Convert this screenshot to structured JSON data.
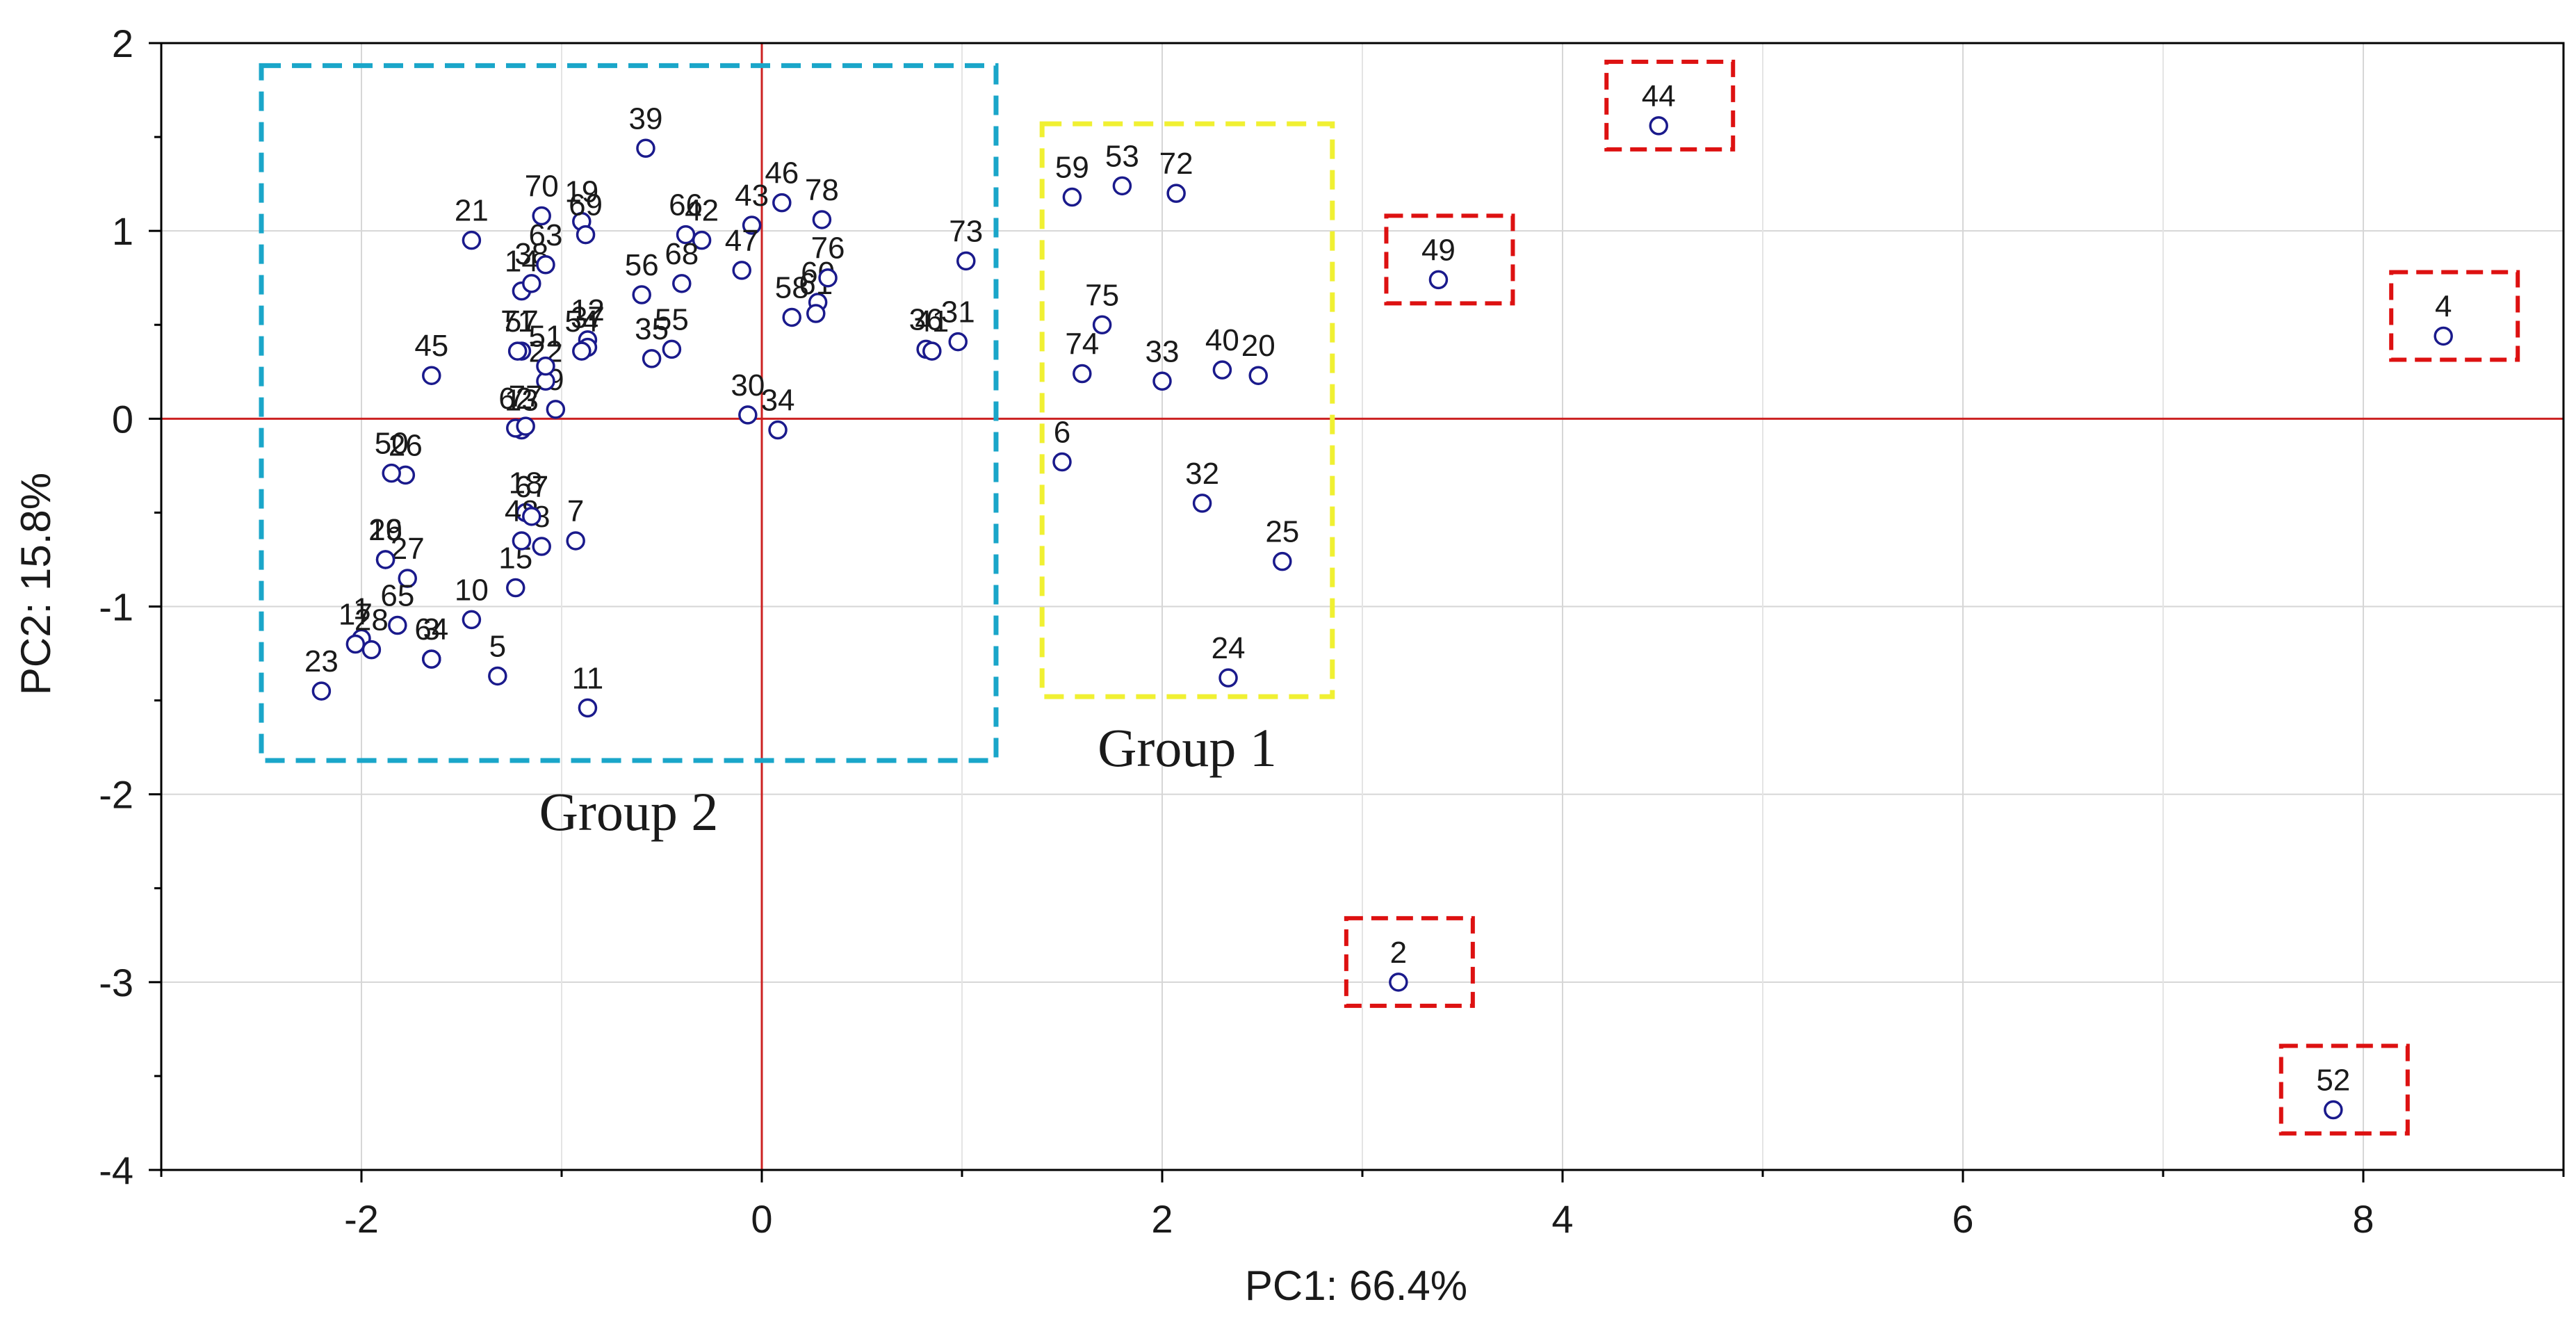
{
  "chart_data": {
    "type": "scatter",
    "title": "",
    "xlabel": "PC1: 66.4%",
    "ylabel": "PC2: 15.8%",
    "xlim": [
      -3,
      9
    ],
    "ylim": [
      -4,
      2
    ],
    "xticks": [
      -2,
      0,
      2,
      4,
      6,
      8
    ],
    "yticks": [
      -4,
      -3,
      -2,
      -1,
      0,
      1,
      2
    ],
    "grid": true,
    "reference_lines": {
      "x": 0,
      "y": 0,
      "color": "#cc2222"
    },
    "marker": {
      "shape": "open-circle",
      "color": "#1a1a8c"
    },
    "points": [
      {
        "label": "1",
        "x": -2.0,
        "y": -1.17
      },
      {
        "label": "2",
        "x": 3.18,
        "y": -3.0
      },
      {
        "label": "3",
        "x": -1.65,
        "y": -1.28
      },
      {
        "label": "4",
        "x": 8.4,
        "y": 0.44
      },
      {
        "label": "5",
        "x": -1.32,
        "y": -1.37
      },
      {
        "label": "6",
        "x": 1.5,
        "y": -0.23
      },
      {
        "label": "7",
        "x": -0.93,
        "y": -0.65
      },
      {
        "label": "8",
        "x": -1.1,
        "y": -0.68
      },
      {
        "label": "9",
        "x": -1.03,
        "y": 0.05
      },
      {
        "label": "10",
        "x": -1.45,
        "y": -1.07
      },
      {
        "label": "11",
        "x": -0.87,
        "y": -1.54
      },
      {
        "label": "12",
        "x": -0.87,
        "y": 0.42
      },
      {
        "label": "13",
        "x": -1.2,
        "y": -0.06
      },
      {
        "label": "14",
        "x": -1.2,
        "y": 0.68
      },
      {
        "label": "15",
        "x": -1.23,
        "y": -0.9
      },
      {
        "label": "16",
        "x": -1.88,
        "y": -0.75
      },
      {
        "label": "17",
        "x": -2.03,
        "y": -1.2
      },
      {
        "label": "18",
        "x": -1.18,
        "y": -0.5
      },
      {
        "label": "19",
        "x": -0.9,
        "y": 1.05
      },
      {
        "label": "20",
        "x": 2.48,
        "y": 0.23
      },
      {
        "label": "21",
        "x": -1.45,
        "y": 0.95
      },
      {
        "label": "22",
        "x": -1.08,
        "y": 0.2
      },
      {
        "label": "23",
        "x": -2.2,
        "y": -1.45
      },
      {
        "label": "24",
        "x": 2.33,
        "y": -1.38
      },
      {
        "label": "25",
        "x": 2.6,
        "y": -0.76
      },
      {
        "label": "26",
        "x": -1.78,
        "y": -0.3
      },
      {
        "label": "27",
        "x": -1.77,
        "y": -0.85
      },
      {
        "label": "28",
        "x": -1.95,
        "y": -1.23
      },
      {
        "label": "29",
        "x": -1.88,
        "y": -0.75
      },
      {
        "label": "30",
        "x": -0.07,
        "y": 0.02
      },
      {
        "label": "31",
        "x": 0.98,
        "y": 0.41
      },
      {
        "label": "32",
        "x": 2.2,
        "y": -0.45
      },
      {
        "label": "33",
        "x": 2.0,
        "y": 0.2
      },
      {
        "label": "34",
        "x": 0.08,
        "y": -0.06
      },
      {
        "label": "35",
        "x": -0.55,
        "y": 0.32
      },
      {
        "label": "36",
        "x": 0.82,
        "y": 0.37
      },
      {
        "label": "37",
        "x": -0.87,
        "y": 0.38
      },
      {
        "label": "38",
        "x": -1.15,
        "y": 0.72
      },
      {
        "label": "39",
        "x": -0.58,
        "y": 1.44
      },
      {
        "label": "40",
        "x": 2.3,
        "y": 0.26
      },
      {
        "label": "41",
        "x": 0.85,
        "y": 0.36
      },
      {
        "label": "42",
        "x": -0.3,
        "y": 0.95
      },
      {
        "label": "43",
        "x": -0.05,
        "y": 1.03
      },
      {
        "label": "44",
        "x": 4.48,
        "y": 1.56
      },
      {
        "label": "45",
        "x": -1.65,
        "y": 0.23
      },
      {
        "label": "46",
        "x": 0.1,
        "y": 1.15
      },
      {
        "label": "47",
        "x": -0.1,
        "y": 0.79
      },
      {
        "label": "48",
        "x": -1.2,
        "y": -0.65
      },
      {
        "label": "49",
        "x": 3.38,
        "y": 0.74
      },
      {
        "label": "50",
        "x": -1.85,
        "y": -0.29
      },
      {
        "label": "51",
        "x": -1.08,
        "y": 0.28
      },
      {
        "label": "52",
        "x": 7.85,
        "y": -3.68
      },
      {
        "label": "53",
        "x": 1.8,
        "y": 1.24
      },
      {
        "label": "54",
        "x": -0.9,
        "y": 0.36
      },
      {
        "label": "55",
        "x": -0.45,
        "y": 0.37
      },
      {
        "label": "56",
        "x": -0.6,
        "y": 0.66
      },
      {
        "label": "57",
        "x": -1.2,
        "y": 0.36
      },
      {
        "label": "58",
        "x": 0.15,
        "y": 0.54
      },
      {
        "label": "59",
        "x": 1.55,
        "y": 1.18
      },
      {
        "label": "60",
        "x": 0.28,
        "y": 0.62
      },
      {
        "label": "61",
        "x": 0.27,
        "y": 0.56
      },
      {
        "label": "62",
        "x": -1.23,
        "y": -0.05
      },
      {
        "label": "63",
        "x": -1.08,
        "y": 0.82
      },
      {
        "label": "64",
        "x": -1.65,
        "y": -1.28
      },
      {
        "label": "65",
        "x": -1.82,
        "y": -1.1
      },
      {
        "label": "66",
        "x": -0.38,
        "y": 0.98
      },
      {
        "label": "67",
        "x": -1.15,
        "y": -0.52
      },
      {
        "label": "68",
        "x": -0.4,
        "y": 0.72
      },
      {
        "label": "69",
        "x": -0.88,
        "y": 0.98
      },
      {
        "label": "70",
        "x": -1.1,
        "y": 1.08
      },
      {
        "label": "71",
        "x": -1.22,
        "y": 0.36
      },
      {
        "label": "72",
        "x": 2.07,
        "y": 1.2
      },
      {
        "label": "73",
        "x": 1.02,
        "y": 0.84
      },
      {
        "label": "74",
        "x": 1.6,
        "y": 0.24
      },
      {
        "label": "75",
        "x": 1.7,
        "y": 0.5
      },
      {
        "label": "76",
        "x": 0.33,
        "y": 0.75
      },
      {
        "label": "77",
        "x": -1.18,
        "y": -0.04
      },
      {
        "label": "78",
        "x": 0.3,
        "y": 1.06
      }
    ],
    "groups": [
      {
        "name": "Group 1",
        "color": "#f0f032",
        "x_range": [
          1.4,
          2.85
        ],
        "y_range": [
          -1.48,
          1.57
        ]
      },
      {
        "name": "Group 2",
        "color": "#1aa6c9",
        "x_range": [
          -2.5,
          1.17
        ],
        "y_range": [
          -1.82,
          1.88
        ]
      }
    ],
    "outlier_boxes": [
      {
        "for": "44",
        "color": "#dd1111"
      },
      {
        "for": "49",
        "color": "#dd1111"
      },
      {
        "for": "4",
        "color": "#dd1111"
      },
      {
        "for": "2",
        "color": "#dd1111"
      },
      {
        "for": "52",
        "color": "#dd1111"
      }
    ]
  }
}
